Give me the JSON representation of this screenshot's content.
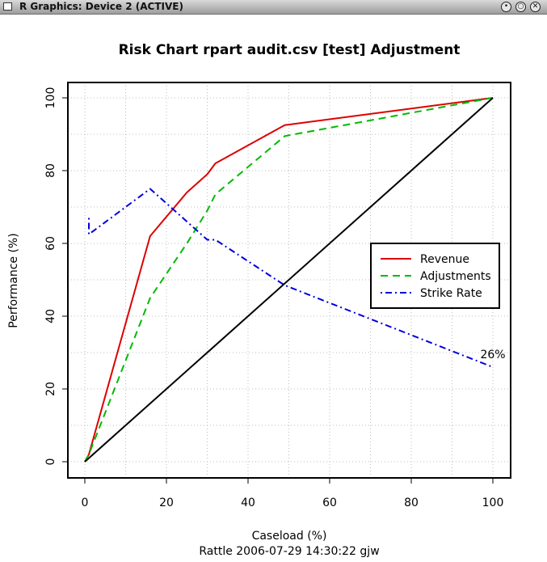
{
  "window": {
    "title": "R Graphics: Device 2 (ACTIVE)",
    "buttons": [
      "minimize",
      "maximize",
      "close"
    ]
  },
  "chart_data": {
    "type": "line",
    "title": "Risk Chart rpart audit.csv [test] Adjustment",
    "xlabel": "Caseload (%)",
    "ylabel": "Performance (%)",
    "footer": "Rattle 2006-07-29 14:30:22 gjw",
    "xlim": [
      0,
      100
    ],
    "ylim": [
      0,
      100
    ],
    "xticks": [
      0,
      20,
      40,
      60,
      80,
      100
    ],
    "yticks": [
      0,
      20,
      40,
      60,
      80,
      100
    ],
    "grid": true,
    "legend_position": "right",
    "series": [
      {
        "name": "Revenue",
        "color": "#dd0000",
        "style": "solid",
        "points": [
          [
            0,
            0
          ],
          [
            1,
            2
          ],
          [
            16,
            62
          ],
          [
            25,
            74
          ],
          [
            30,
            79
          ],
          [
            32,
            82
          ],
          [
            49,
            92.5
          ],
          [
            100,
            100
          ]
        ]
      },
      {
        "name": "Adjustments",
        "color": "#00bb00",
        "style": "dashed",
        "points": [
          [
            0,
            0
          ],
          [
            1,
            2
          ],
          [
            16,
            45
          ],
          [
            25,
            60
          ],
          [
            30,
            69
          ],
          [
            32,
            73.5
          ],
          [
            49,
            89.5
          ],
          [
            100,
            100
          ]
        ]
      },
      {
        "name": "Strike Rate",
        "color": "#0000dd",
        "style": "dotdash",
        "points": [
          [
            1,
            67
          ],
          [
            1,
            62.5
          ],
          [
            16,
            75
          ],
          [
            25,
            66
          ],
          [
            30,
            61
          ],
          [
            32,
            61
          ],
          [
            49,
            48.5
          ],
          [
            100,
            26
          ]
        ]
      },
      {
        "name": "",
        "color": "#000000",
        "style": "solid",
        "points": [
          [
            0,
            0
          ],
          [
            100,
            100
          ]
        ]
      }
    ],
    "annotations": [
      {
        "text": "26%",
        "x": 100,
        "y": 26
      }
    ]
  }
}
